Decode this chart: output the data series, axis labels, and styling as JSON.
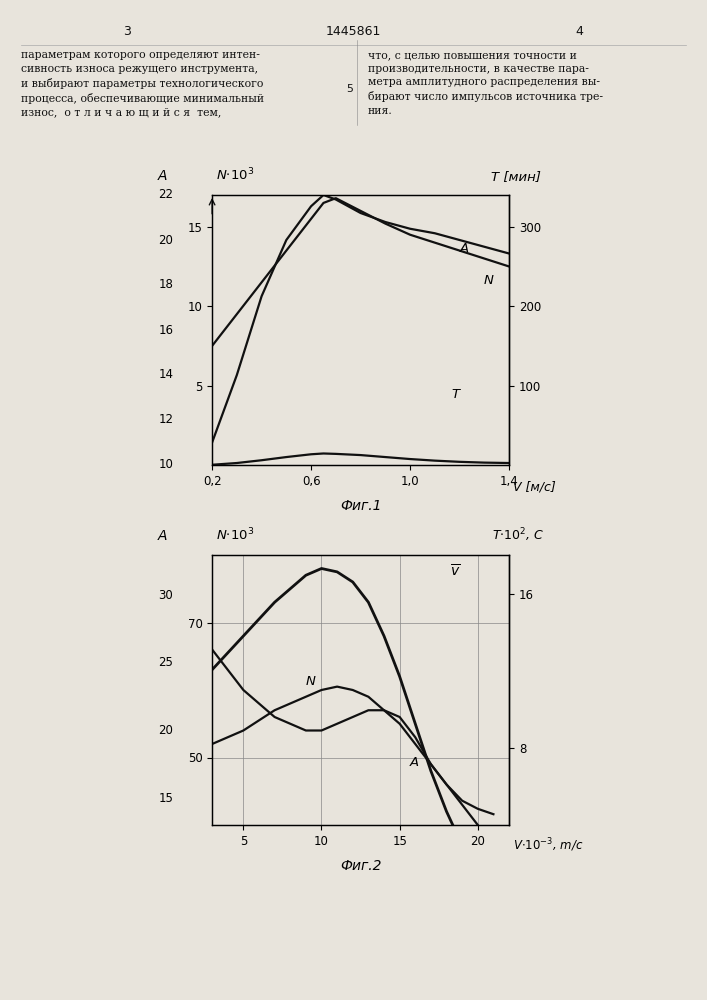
{
  "fig1": {
    "title": "Фиг.1",
    "xlim": [
      0.2,
      1.4
    ],
    "xticks": [
      0.2,
      0.6,
      1.0,
      1.4
    ],
    "xtick_labels": [
      "0,2",
      "0,6",
      "1,0",
      "1,4"
    ],
    "ylim_N": [
      0,
      17
    ],
    "yticks_N": [
      5,
      10,
      15
    ],
    "ylim_A": [
      10,
      22
    ],
    "yticks_A": [
      10,
      12,
      14,
      16,
      18,
      20,
      22
    ],
    "ylim_T": [
      0,
      340
    ],
    "yticks_T": [
      100,
      200,
      300
    ],
    "curve_A_x": [
      0.2,
      0.3,
      0.4,
      0.5,
      0.6,
      0.65,
      0.7,
      0.8,
      0.9,
      1.0,
      1.1,
      1.2,
      1.3,
      1.4
    ],
    "curve_A_y": [
      11.0,
      14.0,
      17.5,
      20.0,
      21.5,
      22.0,
      21.8,
      21.2,
      20.8,
      20.5,
      20.3,
      20.0,
      19.7,
      19.4
    ],
    "curve_N_x": [
      0.2,
      0.3,
      0.4,
      0.5,
      0.6,
      0.65,
      0.7,
      0.8,
      0.9,
      1.0,
      1.1,
      1.2,
      1.3,
      1.4
    ],
    "curve_N_y": [
      7.5,
      9.5,
      11.5,
      13.5,
      15.5,
      16.5,
      16.8,
      16.0,
      15.2,
      14.5,
      14.0,
      13.5,
      13.0,
      12.5
    ],
    "curve_T_x": [
      0.2,
      0.3,
      0.4,
      0.5,
      0.6,
      0.65,
      0.7,
      0.8,
      0.9,
      1.0,
      1.1,
      1.2,
      1.3,
      1.4
    ],
    "curve_T_y": [
      0.3,
      2.5,
      6.0,
      10.0,
      13.5,
      14.5,
      14.0,
      12.5,
      10.0,
      7.5,
      5.5,
      4.0,
      3.0,
      2.5
    ],
    "label_A": [
      0.85,
      0.79
    ],
    "label_N": [
      0.93,
      0.67
    ],
    "label_T": [
      0.82,
      0.25
    ]
  },
  "fig2": {
    "title": "Фиг.2",
    "xlim": [
      3,
      22
    ],
    "xticks": [
      5,
      10,
      15,
      20
    ],
    "ylim_N": [
      40,
      80
    ],
    "yticks_N": [
      50,
      70
    ],
    "ylim_A": [
      13,
      33
    ],
    "yticks_A": [
      15,
      20,
      25,
      30
    ],
    "ylim_T": [
      4,
      18
    ],
    "yticks_T": [
      8,
      16
    ],
    "curve_V_x": [
      3,
      5,
      7,
      9,
      10,
      11,
      12,
      13,
      14,
      15,
      16,
      17,
      18,
      19,
      20,
      21
    ],
    "curve_V_y": [
      63,
      68,
      73,
      77,
      78,
      77.5,
      76,
      73,
      68,
      62,
      55,
      48,
      42,
      37,
      33,
      30
    ],
    "curve_N_x": [
      3,
      5,
      7,
      9,
      10,
      11,
      12,
      13,
      14,
      15,
      16,
      17,
      18,
      19,
      20,
      21
    ],
    "curve_N_y": [
      52,
      54,
      57,
      59,
      60,
      60.5,
      60,
      59,
      57,
      55,
      52,
      49,
      46,
      43,
      40,
      37
    ],
    "curve_A_x": [
      3,
      5,
      7,
      9,
      10,
      11,
      12,
      13,
      14,
      15,
      16,
      17,
      18,
      19,
      20,
      21
    ],
    "curve_A_y": [
      26,
      23,
      21,
      20,
      20.0,
      20.5,
      21,
      21.5,
      21.5,
      21.0,
      19.5,
      17.5,
      16,
      14.8,
      14.2,
      13.8
    ],
    "label_V": [
      0.82,
      0.92
    ],
    "label_N": [
      0.33,
      0.52
    ],
    "label_A": [
      0.68,
      0.22
    ]
  },
  "bg_color": "#e8e4dc",
  "line_color": "#111111"
}
